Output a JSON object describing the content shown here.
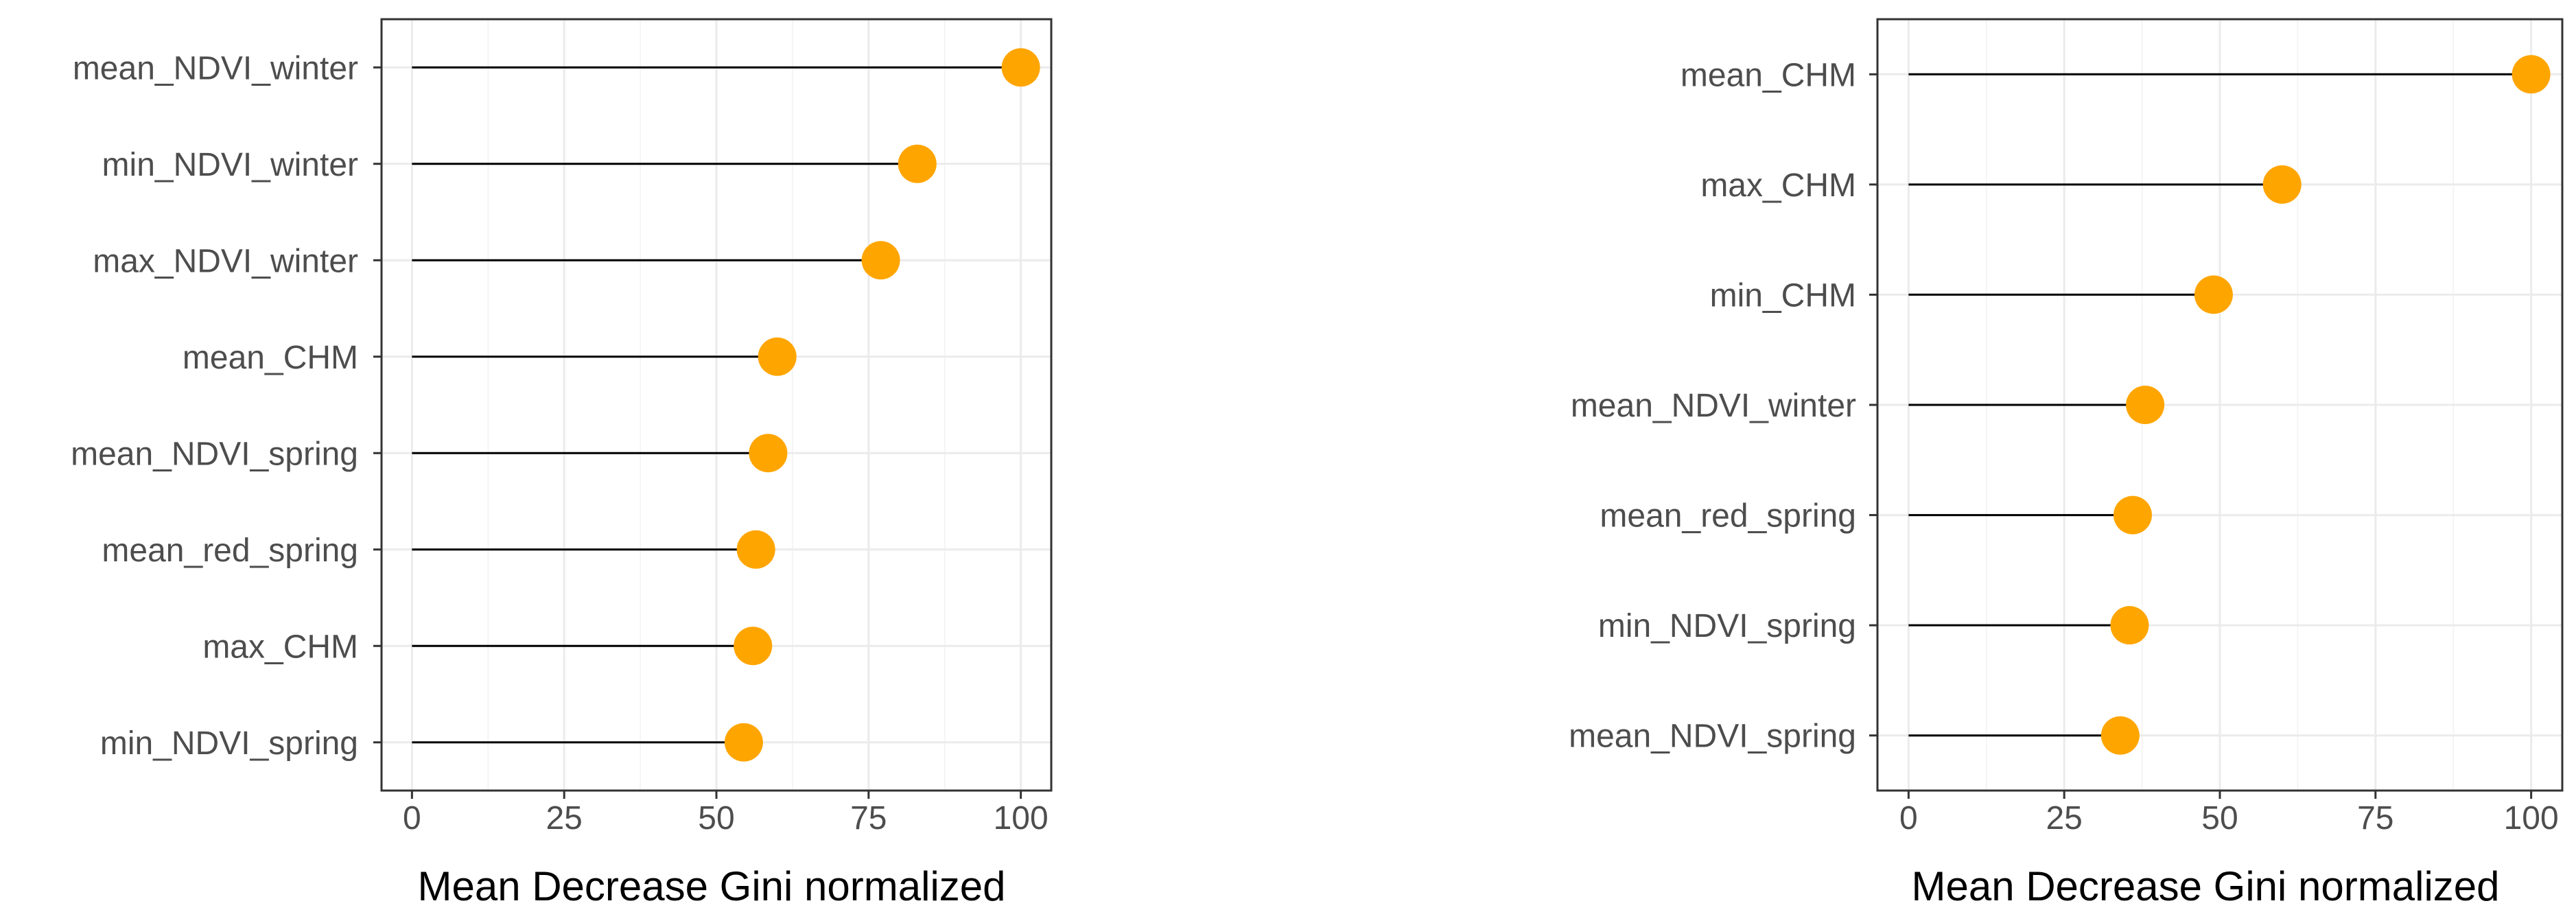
{
  "chart_data": [
    {
      "type": "lollipop",
      "title": "",
      "xlabel": "Mean Decrease Gini normalized",
      "ylabel": "",
      "xlim": [
        -5,
        105
      ],
      "xticks": [
        0,
        25,
        50,
        75,
        100
      ],
      "xtick_labels": [
        "0",
        "25",
        "50",
        "75",
        "100"
      ],
      "grid": true,
      "categories": [
        "mean_NDVI_winter",
        "min_NDVI_winter",
        "max_NDVI_winter",
        "mean_CHM",
        "mean_NDVI_spring",
        "mean_red_spring",
        "max_CHM",
        "min_NDVI_spring"
      ],
      "values": [
        100,
        83,
        77,
        60,
        58.5,
        56.5,
        56,
        54.5
      ],
      "color": "#FFA500"
    },
    {
      "type": "lollipop",
      "title": "",
      "xlabel": "Mean Decrease Gini normalized",
      "ylabel": "",
      "xlim": [
        -5,
        105
      ],
      "xticks": [
        0,
        25,
        50,
        75,
        100
      ],
      "xtick_labels": [
        "0",
        "25",
        "50",
        "75",
        "100"
      ],
      "grid": true,
      "categories": [
        "mean_CHM",
        "max_CHM",
        "min_CHM",
        "mean_NDVI_winter",
        "mean_red_spring",
        "min_NDVI_spring",
        "mean_NDVI_spring"
      ],
      "values": [
        100,
        60,
        49,
        38,
        36,
        35.5,
        34
      ],
      "color": "#FFA500"
    }
  ]
}
